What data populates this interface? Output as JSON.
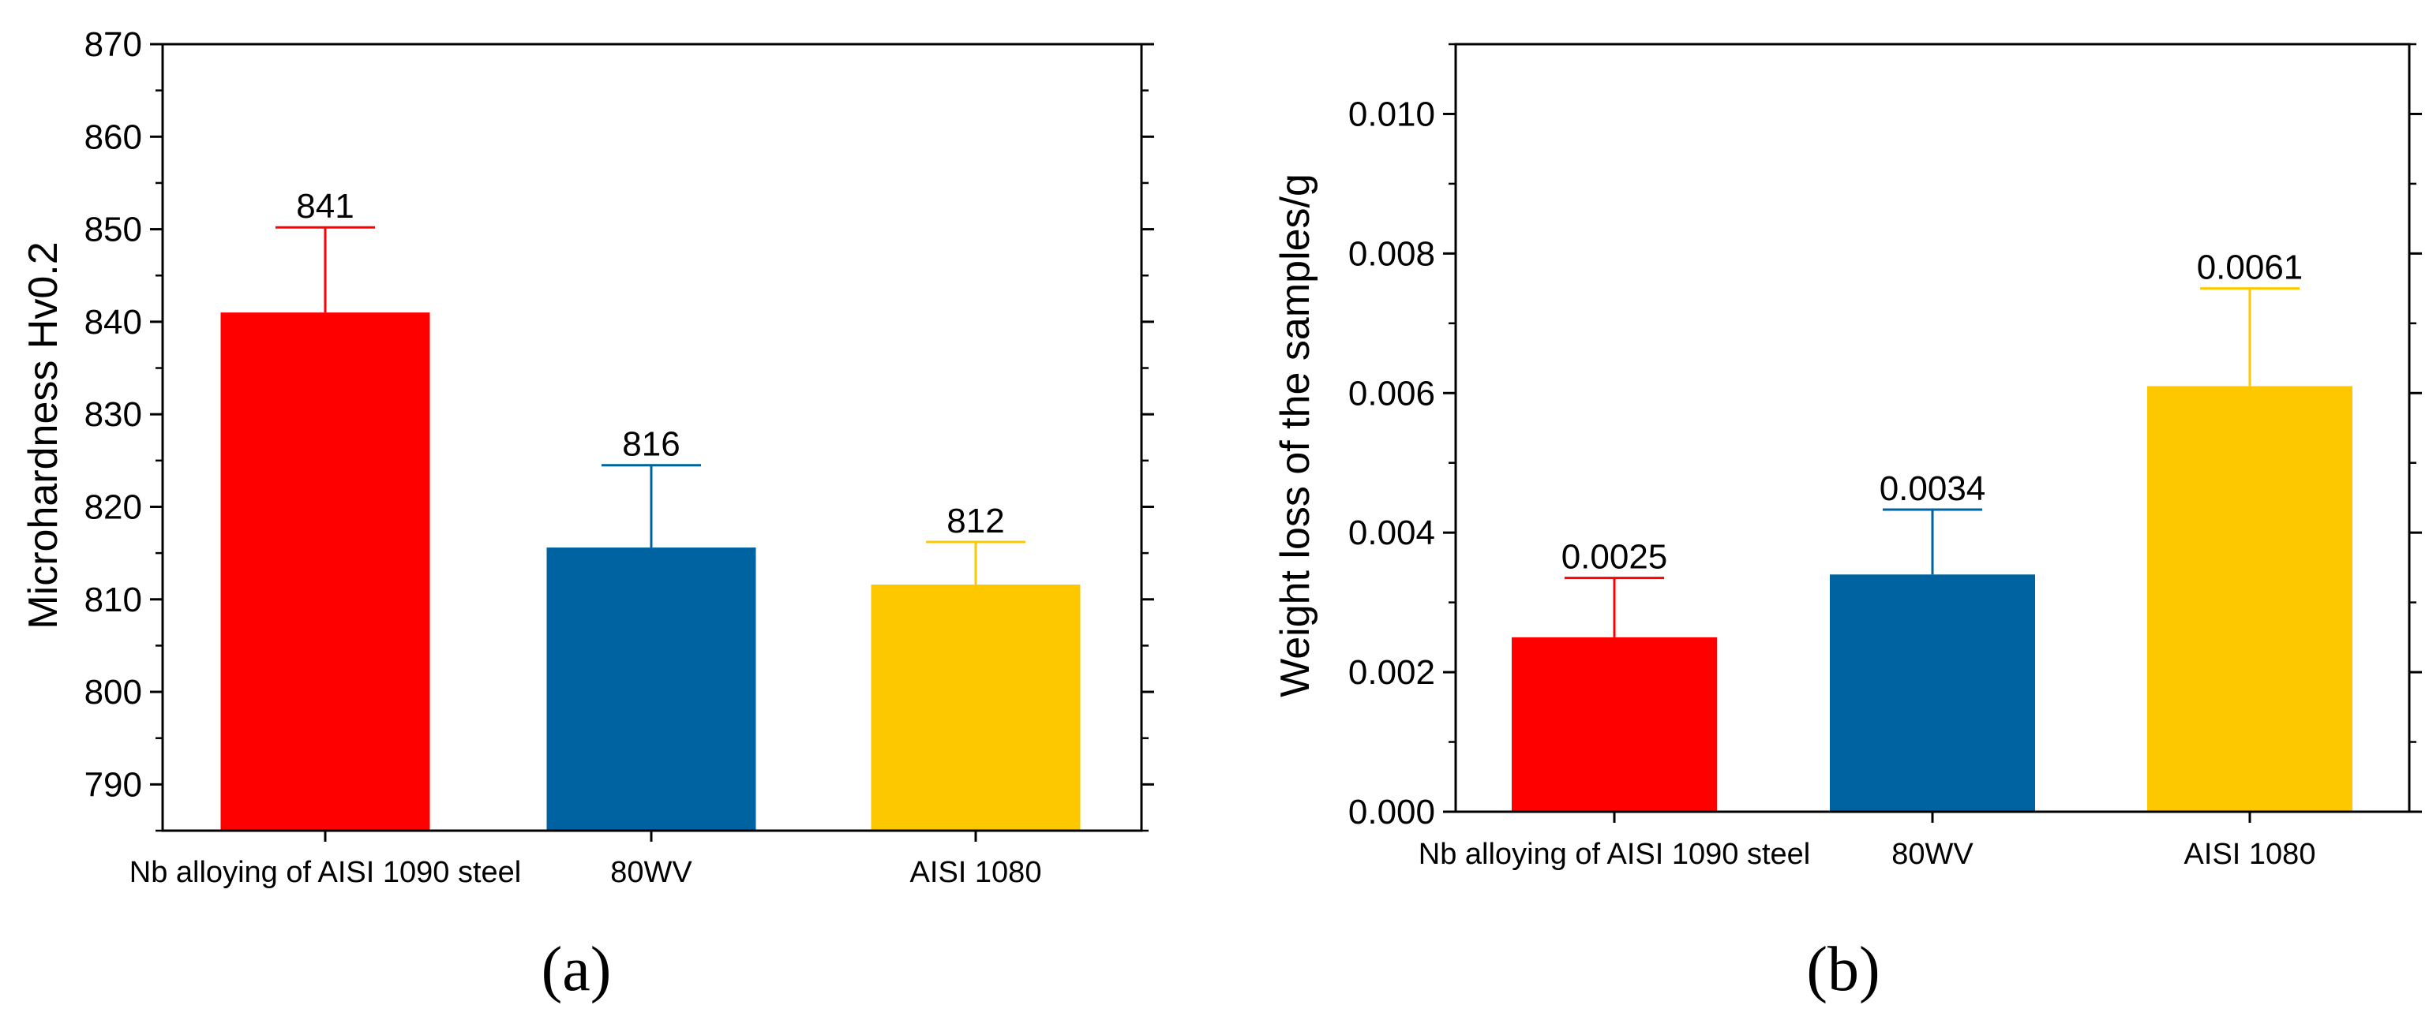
{
  "chart_data": [
    {
      "type": "bar",
      "panel_label": "(a)",
      "ylabel": "Microhardness Hv0.2",
      "xlabel": "",
      "ylim": [
        785,
        870
      ],
      "y_ticks": [
        "790",
        "800",
        "810",
        "820",
        "830",
        "840",
        "850",
        "860",
        "870"
      ],
      "categories": [
        "Nb alloying of AISI 1090 steel",
        "80WV",
        "AISI 1080"
      ],
      "values": [
        841,
        815.6,
        811.6
      ],
      "errors": [
        9.2,
        8.9,
        4.6
      ],
      "value_labels": [
        "841",
        "816",
        "812"
      ],
      "colors": [
        "#ff0000",
        "#0063a1",
        "#fec800"
      ],
      "grid": false
    },
    {
      "type": "bar",
      "panel_label": "(b)",
      "ylabel": "Weight loss of the samples/g",
      "xlabel": "",
      "ylim": [
        0,
        0.011
      ],
      "y_ticks": [
        "0.000",
        "0.002",
        "0.004",
        "0.006",
        "0.008",
        "0.010"
      ],
      "categories": [
        "Nb alloying of AISI 1090 steel",
        "80WV",
        "AISI 1080"
      ],
      "values": [
        0.0025,
        0.0034,
        0.0061
      ],
      "errors": [
        0.00085,
        0.00093,
        0.0014
      ],
      "value_labels": [
        "0.0025",
        "0.0034",
        "0.0061"
      ],
      "colors": [
        "#ff0000",
        "#0063a1",
        "#fec800"
      ],
      "grid": false
    }
  ]
}
